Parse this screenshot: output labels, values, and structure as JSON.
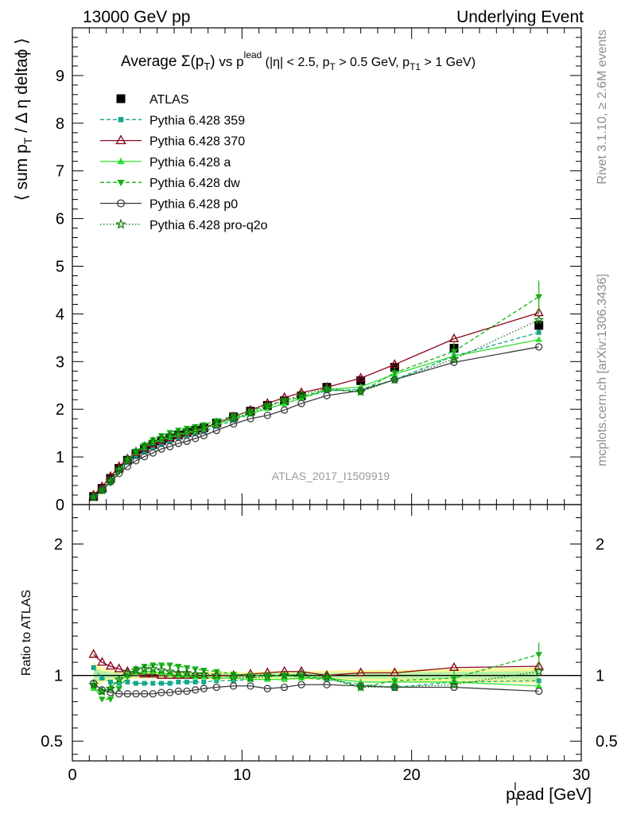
{
  "header": {
    "left": "13000 GeV pp",
    "right": "Underlying Event"
  },
  "side": {
    "rivet": "Rivet 3.1.10, ≥ 2.6M events",
    "mcplots": "mcplots.cern.ch [arXiv:1306.3436]"
  },
  "chart_data": {
    "type": "line",
    "title": {
      "main": "Average Σ(p",
      "sub_T": "T",
      "close": ")",
      "vs": " vs p",
      "sup_lead": "lead",
      "cuts": " (|η| < 2.5, p",
      "cuts2": " > 0.5 GeV, p",
      "sub_T1": "T1",
      "cuts3": " > 1 GeV)"
    },
    "watermark": "ATLAS_2017_I1509919",
    "ylabel": "⟨ sum p_T / Δ η deltaϕ ⟩",
    "ylabel_parts": {
      "a": "⟨ sum p",
      "sub": "T",
      "b": " / Δ η deltaϕ ⟩"
    },
    "ratio_ylabel": "Ratio to ATLAS",
    "xlabel_parts": {
      "a": "p",
      "sub": "T",
      "sup": "l",
      "b": "ead [GeV]"
    },
    "xlim": [
      0,
      30
    ],
    "ylim": [
      0,
      10
    ],
    "ratio_ylim": [
      0.35,
      2.3
    ],
    "xticks": [
      "0",
      "10",
      "20",
      "30"
    ],
    "yticks": [
      "0",
      "1",
      "2",
      "3",
      "4",
      "5",
      "6",
      "7",
      "8",
      "9"
    ],
    "ratio_yticks": [
      "0.5",
      "1",
      "2"
    ],
    "x": [
      1.25,
      1.75,
      2.25,
      2.75,
      3.25,
      3.75,
      4.25,
      4.75,
      5.25,
      5.75,
      6.25,
      6.75,
      7.25,
      7.75,
      8.5,
      9.5,
      10.5,
      11.5,
      12.5,
      13.5,
      15.0,
      17.0,
      19.0,
      22.5,
      27.5
    ],
    "legend_position": "top-left",
    "series": [
      {
        "name": "ATLAS",
        "color": "#000000",
        "marker": "square-filled",
        "dash": "none",
        "values": [
          0.17,
          0.34,
          0.55,
          0.76,
          0.93,
          1.07,
          1.17,
          1.26,
          1.34,
          1.4,
          1.46,
          1.51,
          1.56,
          1.61,
          1.71,
          1.84,
          1.96,
          2.08,
          2.18,
          2.28,
          2.46,
          2.6,
          2.88,
          3.28,
          3.76
        ],
        "errors": [
          0.01,
          0.01,
          0.01,
          0.01,
          0.01,
          0.01,
          0.01,
          0.01,
          0.01,
          0.01,
          0.01,
          0.01,
          0.01,
          0.02,
          0.02,
          0.02,
          0.02,
          0.03,
          0.03,
          0.03,
          0.04,
          0.05,
          0.06,
          0.08,
          0.12
        ]
      },
      {
        "name": "Pythia 6.428 359",
        "color": "#16a88b",
        "marker": "square-small",
        "dash": "5,3",
        "ratios": [
          1.06,
          0.98,
          0.95,
          0.94,
          0.95,
          0.94,
          0.94,
          0.94,
          0.94,
          0.94,
          0.95,
          0.95,
          0.95,
          0.95,
          0.96,
          0.96,
          0.97,
          0.97,
          0.97,
          0.98,
          0.97,
          0.93,
          0.91,
          0.95,
          0.96
        ]
      },
      {
        "name": "Pythia 6.428 370",
        "color": "#8b0a1e",
        "marker": "triangle-open",
        "dash": "none",
        "ratios": [
          1.16,
          1.1,
          1.07,
          1.05,
          1.03,
          1.02,
          1.01,
          1.01,
          1.0,
          1.0,
          1.0,
          1.0,
          1.0,
          1.0,
          1.0,
          1.0,
          1.01,
          1.02,
          1.03,
          1.03,
          1.0,
          1.02,
          1.02,
          1.06,
          1.07
        ]
      },
      {
        "name": "Pythia 6.428 a",
        "color": "#2de22d",
        "marker": "triangle-filled",
        "dash": "none",
        "ratios": [
          0.9,
          0.87,
          0.91,
          0.96,
          1.0,
          1.02,
          1.03,
          1.03,
          1.02,
          1.01,
          1.0,
          1.0,
          0.99,
          0.99,
          0.98,
          0.98,
          0.97,
          0.97,
          0.97,
          0.98,
          0.98,
          0.95,
          0.95,
          0.95,
          0.92
        ]
      },
      {
        "name": "Pythia 6.428 dw",
        "color": "#16b016",
        "marker": "triangle-down-filled",
        "dash": "5,3",
        "ratios": [
          0.92,
          0.82,
          0.82,
          0.9,
          0.99,
          1.05,
          1.07,
          1.08,
          1.08,
          1.08,
          1.07,
          1.06,
          1.05,
          1.04,
          1.03,
          1.01,
          1.0,
          1.0,
          1.0,
          0.99,
          0.98,
          0.91,
          0.96,
          0.98,
          1.16
        ],
        "errors": [
          0.01,
          0.01,
          0.01,
          0.01,
          0.01,
          0.01,
          0.01,
          0.01,
          0.01,
          0.01,
          0.01,
          0.01,
          0.01,
          0.01,
          0.01,
          0.02,
          0.02,
          0.02,
          0.02,
          0.02,
          0.03,
          0.03,
          0.04,
          0.06,
          0.09
        ]
      },
      {
        "name": "Pythia 6.428 p0",
        "color": "#3c3c3c",
        "marker": "circle-open",
        "dash": "none",
        "ratios": [
          0.94,
          0.89,
          0.87,
          0.86,
          0.86,
          0.86,
          0.86,
          0.86,
          0.87,
          0.87,
          0.88,
          0.88,
          0.89,
          0.9,
          0.91,
          0.92,
          0.92,
          0.9,
          0.91,
          0.93,
          0.93,
          0.92,
          0.91,
          0.91,
          0.88
        ]
      },
      {
        "name": "Pythia 6.428 pro-q2o",
        "color": "#0a7a0a",
        "marker": "star-open",
        "dash": "1.5,2.5",
        "ratios": [
          0.93,
          0.88,
          0.9,
          0.97,
          1.02,
          1.04,
          1.05,
          1.05,
          1.04,
          1.03,
          1.02,
          1.02,
          1.01,
          1.01,
          1.0,
          0.99,
          0.98,
          0.99,
          1.0,
          1.01,
          0.99,
          0.91,
          0.91,
          0.93,
          1.03
        ]
      }
    ]
  }
}
